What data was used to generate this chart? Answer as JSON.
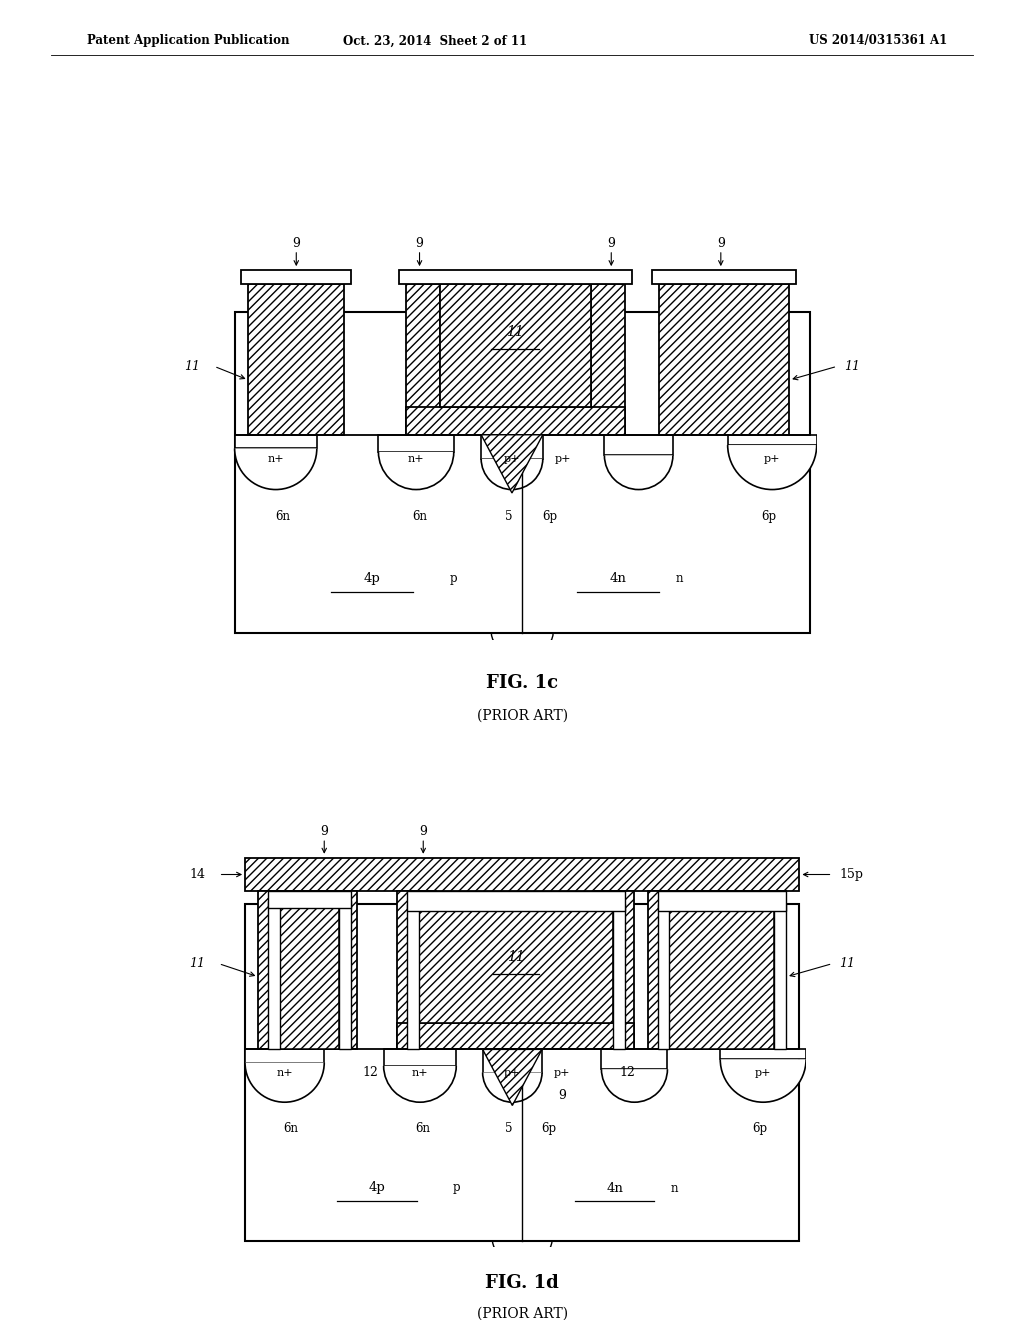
{
  "bg_color": "#ffffff",
  "header_left": "Patent Application Publication",
  "header_center": "Oct. 23, 2014  Sheet 2 of 11",
  "header_right": "US 2014/0315361 A1",
  "fig1c_title": "FIG. 1c",
  "fig1c_sub": "(PRIOR ART)",
  "fig1d_title": "FIG. 1d",
  "fig1d_sub": "(PRIOR ART)"
}
